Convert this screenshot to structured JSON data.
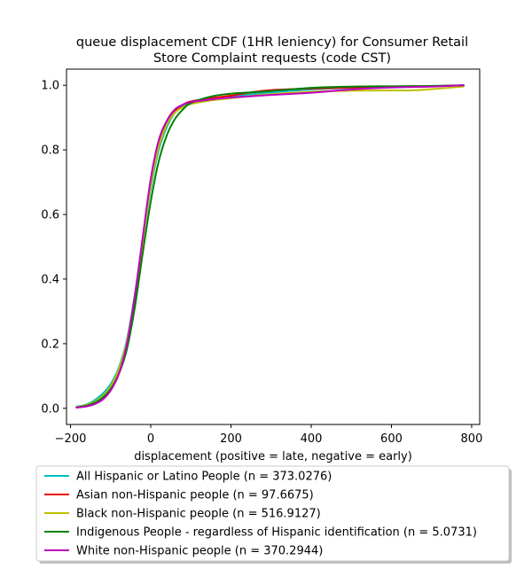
{
  "chart_data": {
    "type": "line",
    "title_lines": [
      "queue displacement CDF (1HR leniency) for Consumer Retail",
      "Store Complaint  requests (code CST)"
    ],
    "xlabel": "displacement (positive = late, negative = early)",
    "ylabel": "",
    "xlim": [
      -210,
      820
    ],
    "ylim": [
      -0.05,
      1.05
    ],
    "xticks": [
      -200,
      0,
      200,
      400,
      600,
      800
    ],
    "yticks": [
      0.0,
      0.2,
      0.4,
      0.6,
      0.8,
      1.0
    ],
    "ytick_labels": [
      "0.0",
      "0.2",
      "0.4",
      "0.6",
      "0.8",
      "1.0"
    ],
    "grid": false,
    "legend_position": "bottom",
    "series": [
      {
        "name": "All Hispanic or Latino People (n = 373.0276)",
        "color": "#00bfbf",
        "x": [
          -185,
          -160,
          -140,
          -120,
          -100,
          -80,
          -60,
          -40,
          -20,
          0,
          20,
          40,
          60,
          80,
          100,
          150,
          200,
          250,
          300,
          400,
          500,
          600,
          700,
          780
        ],
        "y": [
          0.005,
          0.012,
          0.025,
          0.045,
          0.075,
          0.125,
          0.21,
          0.35,
          0.52,
          0.68,
          0.8,
          0.87,
          0.915,
          0.935,
          0.945,
          0.958,
          0.965,
          0.972,
          0.978,
          0.987,
          0.992,
          0.995,
          0.997,
          1.0
        ]
      },
      {
        "name": "Asian non-Hispanic people (n = 97.6675)",
        "color": "#ee0000",
        "x": [
          -185,
          -160,
          -140,
          -120,
          -100,
          -80,
          -60,
          -40,
          -20,
          0,
          20,
          40,
          60,
          80,
          100,
          150,
          200,
          250,
          300,
          400,
          500,
          600,
          700,
          780
        ],
        "y": [
          0.003,
          0.008,
          0.015,
          0.03,
          0.06,
          0.11,
          0.195,
          0.34,
          0.52,
          0.7,
          0.82,
          0.885,
          0.92,
          0.94,
          0.95,
          0.96,
          0.968,
          0.978,
          0.985,
          0.99,
          0.993,
          0.995,
          0.997,
          1.0
        ]
      },
      {
        "name": "Black non-Hispanic people (n = 516.9127)",
        "color": "#bfbf00",
        "x": [
          -185,
          -160,
          -140,
          -120,
          -100,
          -80,
          -60,
          -40,
          -20,
          0,
          20,
          40,
          60,
          80,
          100,
          150,
          200,
          250,
          300,
          400,
          500,
          600,
          650,
          700,
          780
        ],
        "y": [
          0.004,
          0.01,
          0.02,
          0.038,
          0.068,
          0.12,
          0.205,
          0.345,
          0.52,
          0.69,
          0.81,
          0.878,
          0.915,
          0.932,
          0.942,
          0.953,
          0.96,
          0.967,
          0.972,
          0.98,
          0.983,
          0.984,
          0.984,
          0.988,
          0.996
        ]
      },
      {
        "name": "Indigenous People - regardless of Hispanic identification (n = 5.0731)",
        "color": "#008000",
        "x": [
          -185,
          -160,
          -140,
          -120,
          -100,
          -80,
          -60,
          -40,
          -20,
          0,
          20,
          40,
          60,
          80,
          100,
          150,
          200,
          250,
          300,
          400,
          500,
          600,
          700,
          780
        ],
        "y": [
          0.003,
          0.008,
          0.017,
          0.033,
          0.06,
          0.105,
          0.18,
          0.31,
          0.48,
          0.64,
          0.765,
          0.845,
          0.895,
          0.925,
          0.945,
          0.965,
          0.974,
          0.978,
          0.982,
          0.992,
          0.996,
          0.997,
          0.998,
          1.0
        ]
      },
      {
        "name": "White non-Hispanic people (n = 370.2944)",
        "color": "#bf00bf",
        "x": [
          -185,
          -160,
          -140,
          -120,
          -100,
          -80,
          -60,
          -40,
          -20,
          0,
          20,
          40,
          60,
          80,
          100,
          150,
          200,
          250,
          300,
          400,
          500,
          600,
          700,
          780
        ],
        "y": [
          0.002,
          0.006,
          0.013,
          0.027,
          0.055,
          0.105,
          0.195,
          0.345,
          0.53,
          0.71,
          0.83,
          0.89,
          0.925,
          0.94,
          0.948,
          0.956,
          0.962,
          0.966,
          0.97,
          0.977,
          0.987,
          0.993,
          0.996,
          1.0
        ]
      }
    ]
  }
}
